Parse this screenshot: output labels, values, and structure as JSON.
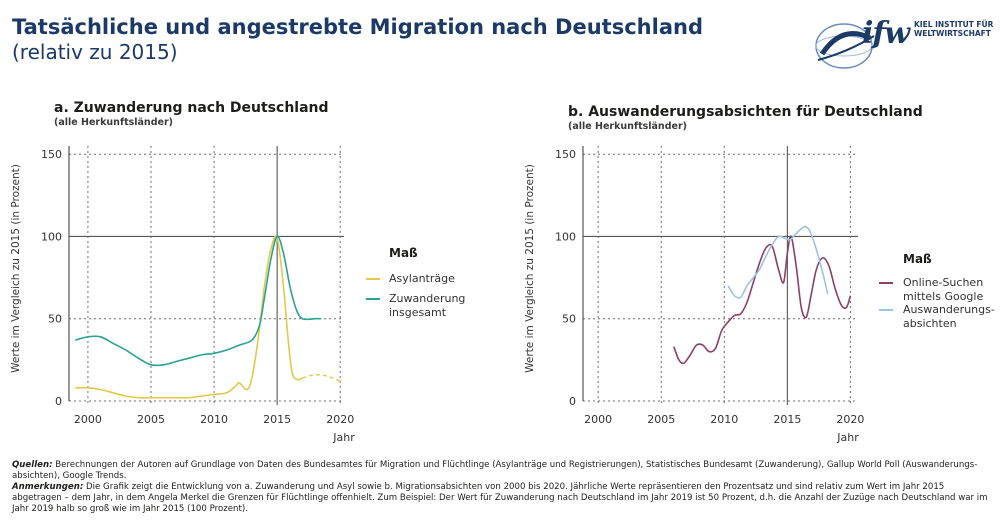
{
  "header": {
    "title": "Tatsächliche und angestrebte Migration nach Deutschland",
    "subtitle": "(relativ zu 2015)"
  },
  "logo": {
    "mark": "ifw",
    "line1": "KIEL INSTITUT FÜR",
    "line2": "WELTWIRTSCHAFT",
    "icon": "globe-icon"
  },
  "colors": {
    "title": "#1b3a66",
    "asyl": "#e3c84a",
    "zuwanderung": "#2aa294",
    "online": "#8e3f66",
    "auswanderung": "#9cc3e6"
  },
  "chart_data": [
    {
      "type": "line",
      "title": "a. Zuwanderung nach Deutschland",
      "subtitle": "(alle Herkunftsländer)",
      "ylabel": "Werte im Vergleich zu 2015 (in Prozent)",
      "xlabel": "Jahr",
      "xlim": [
        1999,
        2020
      ],
      "ylim": [
        0,
        155
      ],
      "xticks": [
        2000,
        2005,
        2010,
        2015,
        2020
      ],
      "yticks": [
        0,
        50,
        100,
        150
      ],
      "xtick_labels": [
        "2000",
        "2005",
        "2010",
        "2015",
        "2020"
      ],
      "ytick_labels": [
        "0",
        "50",
        "100",
        "150"
      ],
      "reference_lines": {
        "x": 2015,
        "y": 100
      },
      "legend": {
        "title": "Maß",
        "placement": "right"
      },
      "series": [
        {
          "name": "Asylanträge",
          "color_key": "asyl",
          "x": [
            1999,
            2000,
            2001,
            2002,
            2003,
            2004,
            2005,
            2006,
            2007,
            2008,
            2009,
            2010,
            2011,
            2011.7,
            2012,
            2012.6,
            2013,
            2013.5,
            2014,
            2014.5,
            2015,
            2015.5,
            2015.9,
            2016.2,
            2016.6,
            2017
          ],
          "y": [
            8,
            8,
            7,
            5,
            3,
            2,
            2,
            2,
            2,
            2,
            3,
            4,
            5,
            9,
            11,
            7,
            14,
            38,
            70,
            92,
            99,
            70,
            35,
            17,
            13,
            14
          ],
          "dashed_from_x": 2017,
          "x_dashed": [
            2017,
            2018,
            2019,
            2020
          ],
          "y_dashed": [
            14,
            16,
            15,
            12
          ]
        },
        {
          "name": "Zuwanderung insgesamt",
          "color_key": "zuwanderung",
          "x": [
            1999,
            2000,
            2001,
            2002,
            2003,
            2004,
            2005,
            2006,
            2007,
            2008,
            2009,
            2010,
            2011,
            2012,
            2013,
            2013.6,
            2014,
            2014.5,
            2015,
            2015.5,
            2016,
            2016.5,
            2017,
            2018,
            2018.5
          ],
          "y": [
            37,
            39,
            39,
            35,
            31,
            26,
            22,
            22,
            24,
            26,
            28,
            29,
            31,
            34,
            37,
            46,
            63,
            86,
            100,
            90,
            70,
            56,
            50,
            50,
            50
          ]
        }
      ]
    },
    {
      "type": "line",
      "title": "b. Auswanderungsabsichten für Deutschland",
      "subtitle": "(alle Herkunftsländer)",
      "ylabel": "Werte im Vergleich zu 2015 (in Prozent)",
      "xlabel": "Jahr",
      "xlim": [
        1999,
        2020
      ],
      "ylim": [
        0,
        155
      ],
      "xticks": [
        2000,
        2005,
        2010,
        2015,
        2020
      ],
      "yticks": [
        0,
        50,
        100,
        150
      ],
      "xtick_labels": [
        "2000",
        "2005",
        "2010",
        "2015",
        "2020"
      ],
      "ytick_labels": [
        "0",
        "50",
        "100",
        "150"
      ],
      "reference_lines": {
        "x": 2015,
        "y": 100
      },
      "legend": {
        "title": "Maß",
        "placement": "right"
      },
      "series": [
        {
          "name": "Online-Suchen mittels Google",
          "color_key": "online",
          "x": [
            2006.0,
            2006.4,
            2006.8,
            2007.3,
            2007.8,
            2008.3,
            2008.8,
            2009.3,
            2009.8,
            2010.3,
            2010.8,
            2011.3,
            2011.8,
            2012.3,
            2012.8,
            2013.3,
            2013.8,
            2014.3,
            2014.7,
            2015.0,
            2015.3,
            2015.7,
            2016.1,
            2016.5,
            2016.9,
            2017.3,
            2017.8,
            2018.3,
            2018.8,
            2019.3,
            2019.7,
            2020.0
          ],
          "y": [
            33,
            25,
            23,
            28,
            34,
            34,
            30,
            32,
            43,
            48,
            52,
            53,
            60,
            72,
            84,
            93,
            94,
            80,
            72,
            90,
            100,
            82,
            57,
            51,
            65,
            80,
            87,
            82,
            68,
            58,
            57,
            64
          ]
        },
        {
          "name": "Auswanderungs-absichten",
          "color_key": "auswanderung",
          "x": [
            2010.3,
            2010.8,
            2011.3,
            2011.8,
            2012.3,
            2012.8,
            2013.3,
            2013.8,
            2014.3,
            2014.8,
            2015.2,
            2015.6,
            2016.0,
            2016.4,
            2016.8,
            2017.3,
            2017.8,
            2018.2
          ],
          "y": [
            70,
            64,
            63,
            70,
            75,
            80,
            88,
            95,
            100,
            99,
            98,
            101,
            104,
            106,
            103,
            92,
            78,
            65
          ]
        }
      ]
    }
  ],
  "footer": {
    "quellen_label": "Quellen:",
    "quellen_text": " Berechnungen der Autoren auf Grundlage von Daten des Bundesamtes für Migration und Flüchtlinge (Asylanträge und Registrierungen), Statistisches Bundesamt (Zuwanderung), Gallup World Poll (Auswanderungs-absichten), Google Trends.",
    "anmerkungen_label": "Anmerkungen:",
    "anmerkungen_text": " Die Grafik zeigt die Entwicklung von a. Zuwanderung und Asyl sowie b. Migrationsabsichten von 2000 bis 2020. Jährliche Werte repräsentieren den Prozentsatz und sind relativ zum Wert im Jahr 2015 abgetragen – dem Jahr, in dem Angela Merkel die Grenzen für Flüchtlinge offenhielt. Zum Beispiel: Der Wert für Zuwanderung nach Deutschland im Jahr 2019 ist 50 Prozent, d.h. die Anzahl der Zuzüge nach Deutschland war im Jahr 2019 halb so groß wie im Jahr 2015 (100 Prozent)."
  }
}
